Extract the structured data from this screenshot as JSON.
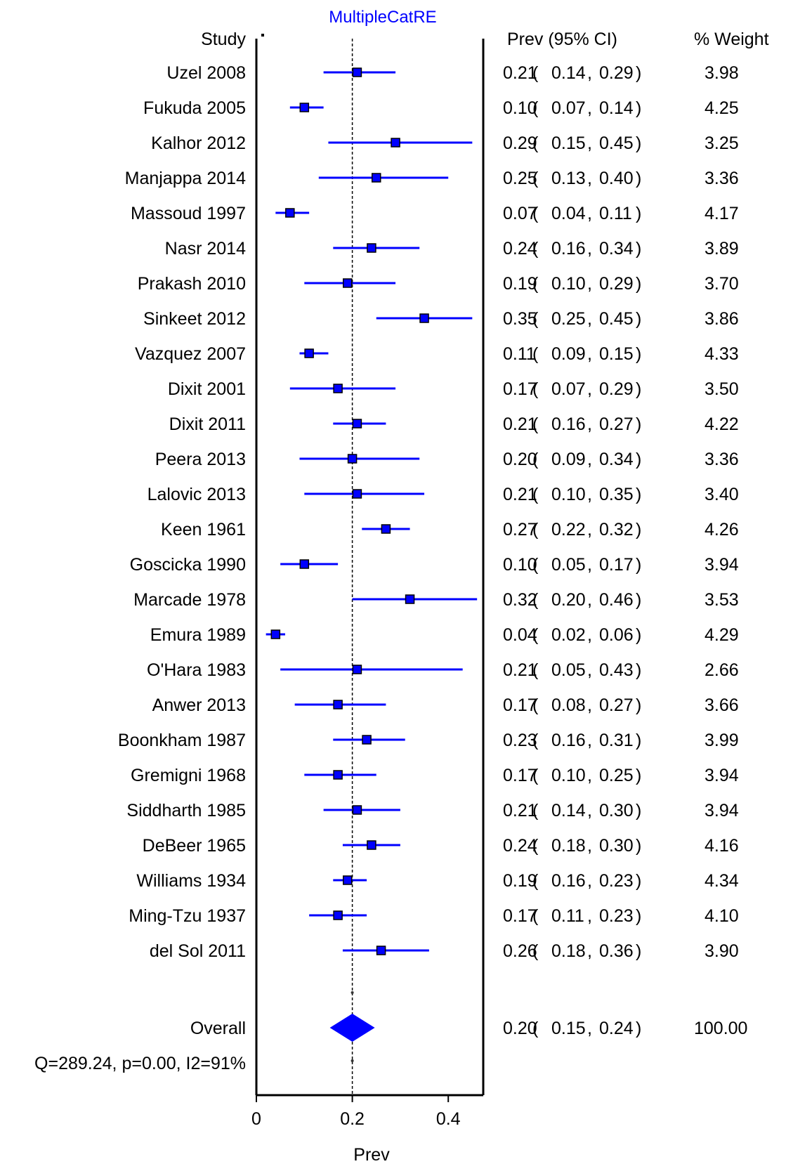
{
  "chart_data": {
    "type": "forest",
    "title": "MultipleCatRE",
    "xlabel": "Prev",
    "xlim": [
      0,
      0.48
    ],
    "xticks": [
      0,
      0.2,
      0.4
    ],
    "xtick_labels": [
      "0",
      "0.2",
      "0.4"
    ],
    "reference_line": 0.2,
    "headers": {
      "study": "Study",
      "ci": "Prev (95% CI)",
      "weight": "% Weight"
    },
    "series_color": "#0000ff",
    "studies": [
      {
        "name": "Uzel 2008",
        "est": 0.21,
        "lo": 0.14,
        "hi": 0.29,
        "weight": 3.98,
        "est_label": "0.21",
        "lo_label": "0.14",
        "hi_label": "0.29",
        "weight_label": "3.98"
      },
      {
        "name": "Fukuda 2005",
        "est": 0.1,
        "lo": 0.07,
        "hi": 0.14,
        "weight": 4.25,
        "est_label": "0.10",
        "lo_label": "0.07",
        "hi_label": "0.14",
        "weight_label": "4.25"
      },
      {
        "name": "Kalhor 2012",
        "est": 0.29,
        "lo": 0.15,
        "hi": 0.45,
        "weight": 3.25,
        "est_label": "0.29",
        "lo_label": "0.15",
        "hi_label": "0.45",
        "weight_label": "3.25"
      },
      {
        "name": "Manjappa 2014",
        "est": 0.25,
        "lo": 0.13,
        "hi": 0.4,
        "weight": 3.36,
        "est_label": "0.25",
        "lo_label": "0.13",
        "hi_label": "0.40",
        "weight_label": "3.36"
      },
      {
        "name": "Massoud 1997",
        "est": 0.07,
        "lo": 0.04,
        "hi": 0.11,
        "weight": 4.17,
        "est_label": "0.07",
        "lo_label": "0.04",
        "hi_label": "0.11",
        "weight_label": "4.17"
      },
      {
        "name": "Nasr 2014",
        "est": 0.24,
        "lo": 0.16,
        "hi": 0.34,
        "weight": 3.89,
        "est_label": "0.24",
        "lo_label": "0.16",
        "hi_label": "0.34",
        "weight_label": "3.89"
      },
      {
        "name": "Prakash 2010",
        "est": 0.19,
        "lo": 0.1,
        "hi": 0.29,
        "weight": 3.7,
        "est_label": "0.19",
        "lo_label": "0.10",
        "hi_label": "0.29",
        "weight_label": "3.70"
      },
      {
        "name": "Sinkeet 2012",
        "est": 0.35,
        "lo": 0.25,
        "hi": 0.45,
        "weight": 3.86,
        "est_label": "0.35",
        "lo_label": "0.25",
        "hi_label": "0.45",
        "weight_label": "3.86"
      },
      {
        "name": "Vazquez 2007",
        "est": 0.11,
        "lo": 0.09,
        "hi": 0.15,
        "weight": 4.33,
        "est_label": "0.11",
        "lo_label": "0.09",
        "hi_label": "0.15",
        "weight_label": "4.33"
      },
      {
        "name": "Dixit 2001",
        "est": 0.17,
        "lo": 0.07,
        "hi": 0.29,
        "weight": 3.5,
        "est_label": "0.17",
        "lo_label": "0.07",
        "hi_label": "0.29",
        "weight_label": "3.50"
      },
      {
        "name": "Dixit 2011",
        "est": 0.21,
        "lo": 0.16,
        "hi": 0.27,
        "weight": 4.22,
        "est_label": "0.21",
        "lo_label": "0.16",
        "hi_label": "0.27",
        "weight_label": "4.22"
      },
      {
        "name": "Peera 2013",
        "est": 0.2,
        "lo": 0.09,
        "hi": 0.34,
        "weight": 3.36,
        "est_label": "0.20",
        "lo_label": "0.09",
        "hi_label": "0.34",
        "weight_label": "3.36"
      },
      {
        "name": "Lalovic 2013",
        "est": 0.21,
        "lo": 0.1,
        "hi": 0.35,
        "weight": 3.4,
        "est_label": "0.21",
        "lo_label": "0.10",
        "hi_label": "0.35",
        "weight_label": "3.40"
      },
      {
        "name": "Keen 1961",
        "est": 0.27,
        "lo": 0.22,
        "hi": 0.32,
        "weight": 4.26,
        "est_label": "0.27",
        "lo_label": "0.22",
        "hi_label": "0.32",
        "weight_label": "4.26"
      },
      {
        "name": "Goscicka 1990",
        "est": 0.1,
        "lo": 0.05,
        "hi": 0.17,
        "weight": 3.94,
        "est_label": "0.10",
        "lo_label": "0.05",
        "hi_label": "0.17",
        "weight_label": "3.94"
      },
      {
        "name": "Marcade 1978",
        "est": 0.32,
        "lo": 0.2,
        "hi": 0.46,
        "weight": 3.53,
        "est_label": "0.32",
        "lo_label": "0.20",
        "hi_label": "0.46",
        "weight_label": "3.53"
      },
      {
        "name": "Emura 1989",
        "est": 0.04,
        "lo": 0.02,
        "hi": 0.06,
        "weight": 4.29,
        "est_label": "0.04",
        "lo_label": "0.02",
        "hi_label": "0.06",
        "weight_label": "4.29"
      },
      {
        "name": "O'Hara 1983",
        "est": 0.21,
        "lo": 0.05,
        "hi": 0.43,
        "weight": 2.66,
        "est_label": "0.21",
        "lo_label": "0.05",
        "hi_label": "0.43",
        "weight_label": "2.66"
      },
      {
        "name": "Anwer 2013",
        "est": 0.17,
        "lo": 0.08,
        "hi": 0.27,
        "weight": 3.66,
        "est_label": "0.17",
        "lo_label": "0.08",
        "hi_label": "0.27",
        "weight_label": "3.66"
      },
      {
        "name": "Boonkham 1987",
        "est": 0.23,
        "lo": 0.16,
        "hi": 0.31,
        "weight": 3.99,
        "est_label": "0.23",
        "lo_label": "0.16",
        "hi_label": "0.31",
        "weight_label": "3.99"
      },
      {
        "name": "Gremigni 1968",
        "est": 0.17,
        "lo": 0.1,
        "hi": 0.25,
        "weight": 3.94,
        "est_label": "0.17",
        "lo_label": "0.10",
        "hi_label": "0.25",
        "weight_label": "3.94"
      },
      {
        "name": "Siddharth 1985",
        "est": 0.21,
        "lo": 0.14,
        "hi": 0.3,
        "weight": 3.94,
        "est_label": "0.21",
        "lo_label": "0.14",
        "hi_label": "0.30",
        "weight_label": "3.94"
      },
      {
        "name": "DeBeer 1965",
        "est": 0.24,
        "lo": 0.18,
        "hi": 0.3,
        "weight": 4.16,
        "est_label": "0.24",
        "lo_label": "0.18",
        "hi_label": "0.30",
        "weight_label": "4.16"
      },
      {
        "name": "Williams 1934",
        "est": 0.19,
        "lo": 0.16,
        "hi": 0.23,
        "weight": 4.34,
        "est_label": "0.19",
        "lo_label": "0.16",
        "hi_label": "0.23",
        "weight_label": "4.34"
      },
      {
        "name": "Ming-Tzu 1937",
        "est": 0.17,
        "lo": 0.11,
        "hi": 0.23,
        "weight": 4.1,
        "est_label": "0.17",
        "lo_label": "0.11",
        "hi_label": "0.23",
        "weight_label": "4.10"
      },
      {
        "name": "del Sol 2011",
        "est": 0.26,
        "lo": 0.18,
        "hi": 0.36,
        "weight": 3.9,
        "est_label": "0.26",
        "lo_label": "0.18",
        "hi_label": "0.36",
        "weight_label": "3.90"
      }
    ],
    "overall": {
      "name": "Overall",
      "est": 0.2,
      "lo": 0.15,
      "hi": 0.24,
      "weight": 100.0,
      "est_label": "0.20",
      "lo_label": "0.15",
      "hi_label": "0.24",
      "weight_label": "100.00"
    },
    "heterogeneity": "Q=289.24, p=0.00, I2=91%"
  }
}
